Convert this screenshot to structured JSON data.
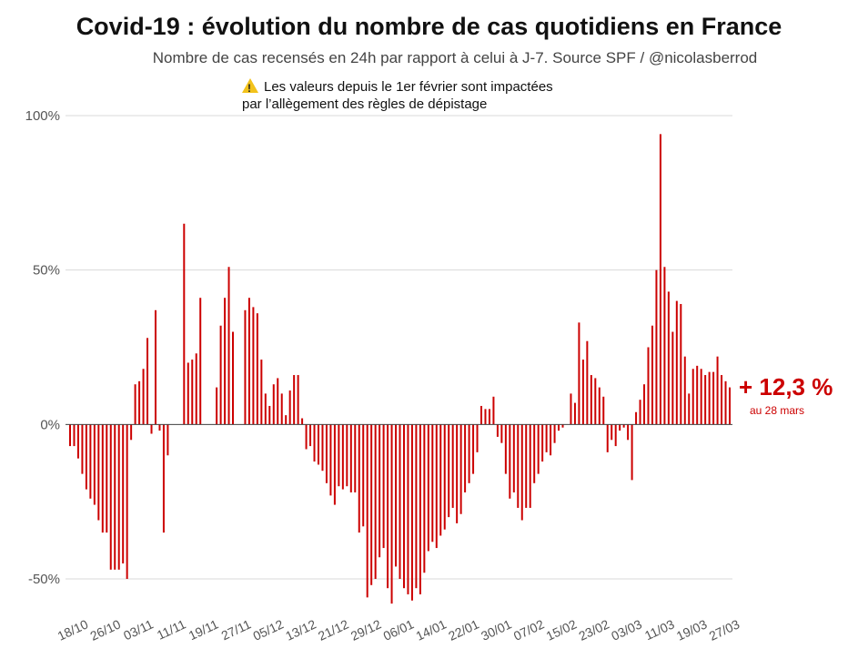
{
  "title": "Covid-19 : évolution du nombre de cas quotidiens en France",
  "subtitle": "Nombre de cas recensés en 24h par rapport à celui à J-7. Source SPF / @nicolasberrod",
  "note": {
    "icon": "warning-icon",
    "line1": "Les valeurs depuis le 1er février sont impactées",
    "line2": "par l’allègement des règles de dépistage"
  },
  "callout": {
    "value": "+ 12,3 %",
    "date": "au 28 mars"
  },
  "colors": {
    "bar": "#cc0000",
    "grid": "#d9d9d9",
    "text": "#555555",
    "callout": "#cc0000"
  },
  "chart_data": {
    "type": "bar",
    "title": "Covid-19 : évolution du nombre de cas quotidiens en France",
    "xlabel": "",
    "ylabel": "",
    "ylim": [
      -50,
      100
    ],
    "yticks": [
      {
        "value": 100,
        "label": "100%"
      },
      {
        "value": 50,
        "label": "50%"
      },
      {
        "value": 0,
        "label": "0%"
      },
      {
        "value": -50,
        "label": "-50%"
      }
    ],
    "xtick_labels": [
      "18/10",
      "26/10",
      "03/11",
      "11/11",
      "19/11",
      "27/11",
      "05/12",
      "13/12",
      "21/12",
      "29/12",
      "06/01",
      "14/01",
      "22/01",
      "30/01",
      "07/02",
      "15/02",
      "23/02",
      "03/03",
      "11/03",
      "19/03",
      "27/03"
    ],
    "xtick_step": 8,
    "series": [
      {
        "name": "Variation J-7",
        "start": "18/10",
        "end": "28/03",
        "values": [
          -7,
          -7,
          -11,
          -16,
          -21,
          -24,
          -26,
          -31,
          -35,
          -35,
          -47,
          -47,
          -47,
          -45,
          -50,
          -5,
          13,
          14,
          18,
          28,
          -3,
          37,
          -2,
          -35,
          -10,
          0,
          0,
          0,
          65,
          20,
          21,
          23,
          41,
          0,
          0,
          0,
          12,
          32,
          41,
          51,
          30,
          0,
          0,
          37,
          41,
          38,
          36,
          21,
          10,
          6,
          13,
          15,
          10,
          3,
          11,
          16,
          16,
          2,
          -8,
          -7,
          -12,
          -13,
          -15,
          -19,
          -23,
          -26,
          -20,
          -21,
          -20,
          -22,
          -22,
          -35,
          -33,
          -56,
          -52,
          -50,
          -43,
          -40,
          -53,
          -58,
          -46,
          -50,
          -53,
          -55,
          -57,
          -53,
          -55,
          -48,
          -41,
          -38,
          -40,
          -36,
          -34,
          -30,
          -27,
          -32,
          -29,
          -22,
          -19,
          -16,
          -9,
          6,
          5,
          5,
          9,
          -4,
          -6,
          -16,
          -24,
          -22,
          -27,
          -31,
          -27,
          -27,
          -19,
          -16,
          -12,
          -9,
          -10,
          -6,
          -2,
          -1,
          0,
          10,
          7,
          33,
          21,
          27,
          16,
          15,
          12,
          9,
          -9,
          -5,
          -7,
          -2,
          -1,
          -5,
          -18,
          4,
          8,
          13,
          25,
          32,
          50,
          94,
          51,
          43,
          30,
          40,
          39,
          22,
          10,
          18,
          19,
          18,
          16,
          17,
          17,
          22,
          16,
          14,
          12
        ]
      }
    ]
  }
}
